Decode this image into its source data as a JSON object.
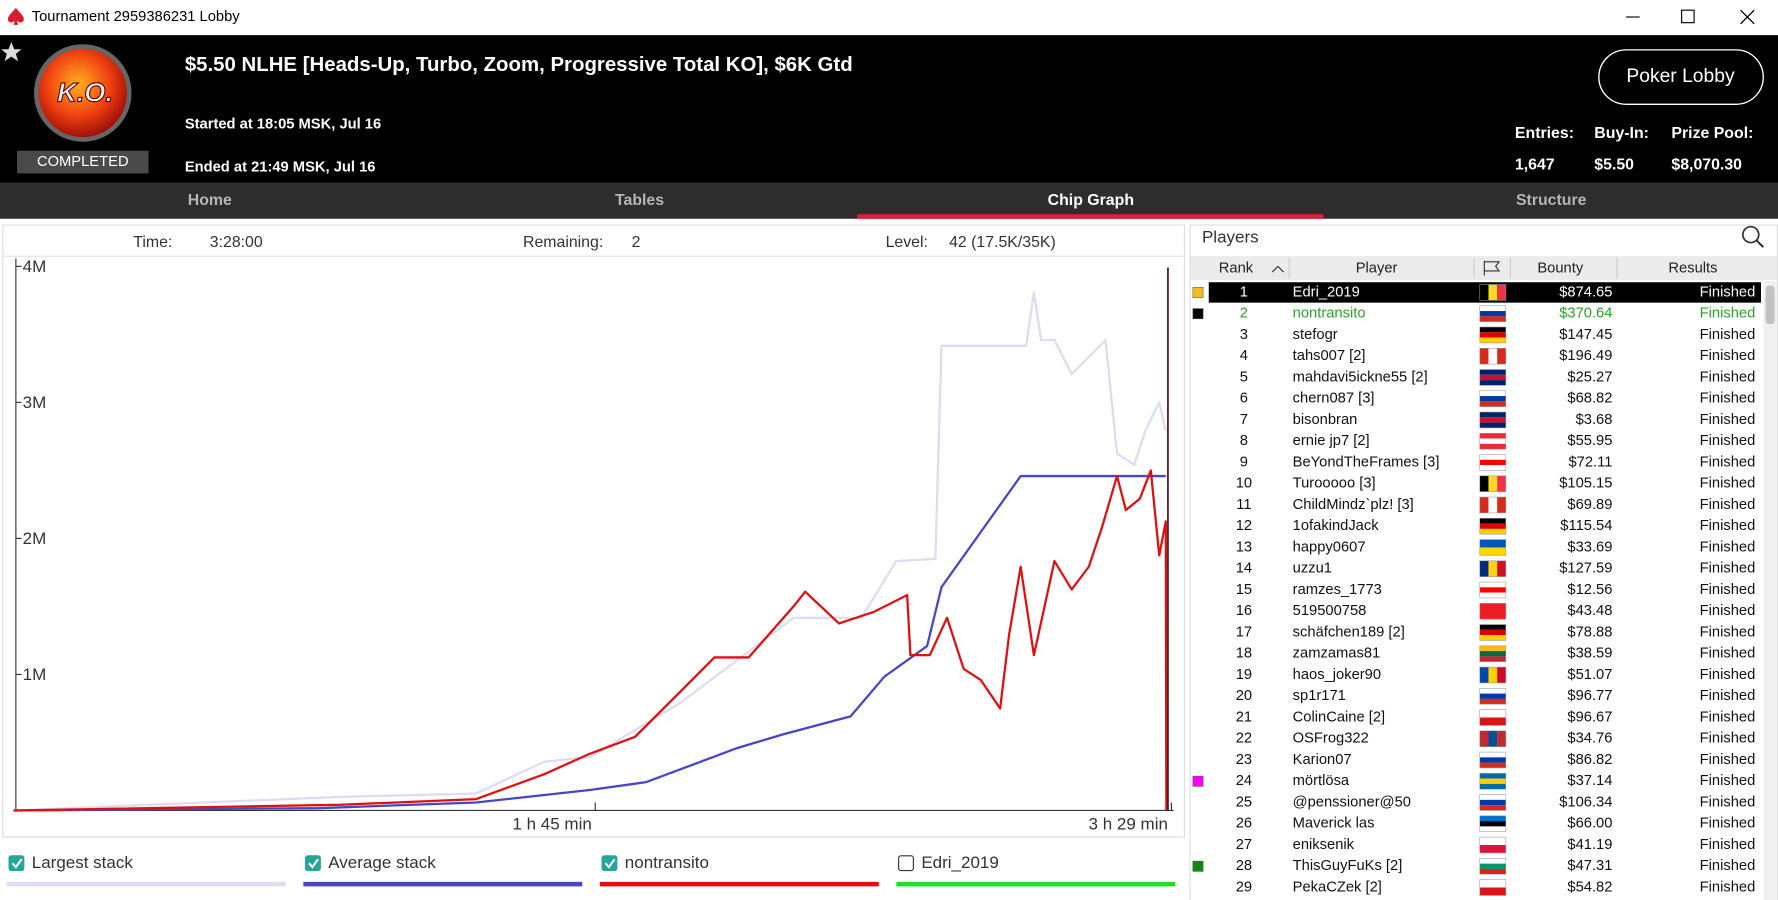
{
  "window": {
    "title": "Tournament 2959386231 Lobby"
  },
  "header": {
    "badge": "K.O.",
    "status": "COMPLETED",
    "title": "$5.50 NLHE [Heads-Up, Turbo, Zoom, Progressive Total KO], $6K Gtd",
    "started": "Started at 18:05 MSK, Jul 16",
    "ended": "Ended at 21:49 MSK, Jul 16",
    "button": "Poker Lobby",
    "stats": [
      {
        "label": "Entries:",
        "value": "1,647"
      },
      {
        "label": "Buy-In:",
        "value": "$5.50"
      },
      {
        "label": "Prize Pool:",
        "value": "$8,070.30"
      }
    ]
  },
  "tabs": [
    {
      "label": "Home"
    },
    {
      "label": "Tables"
    },
    {
      "label": "Chip Graph",
      "active": true
    },
    {
      "label": "Structure"
    }
  ],
  "graph_info": [
    {
      "label": "Time:",
      "value": "3:28:00"
    },
    {
      "label": "Remaining:",
      "value": "2"
    },
    {
      "label": "Level:",
      "value": "42 (17.5K/35K)"
    }
  ],
  "chart_data": {
    "type": "line",
    "xlim": [
      0,
      209
    ],
    "ylim": [
      0,
      4000000
    ],
    "yticks": [
      {
        "value": 1000000,
        "label": "1M"
      },
      {
        "value": 2000000,
        "label": "2M"
      },
      {
        "value": 3000000,
        "label": "3M"
      },
      {
        "value": 4000000,
        "label": "4M"
      }
    ],
    "xticks": [
      {
        "value": 105,
        "label": "1 h 45 min"
      },
      {
        "value": 209,
        "label": "3 h 29 min"
      }
    ],
    "series": [
      {
        "name": "Largest stack",
        "color": "#dcdcf2",
        "checked": true,
        "x": [
          0,
          59,
          83.5,
          95.8,
          104,
          120.4,
          140.8,
          153.1,
          159.3,
          166.4,
          167.5,
          182.8,
          184.2,
          185.5,
          187.9,
          191,
          197.1,
          199.2,
          202.3,
          204.3,
          206.8,
          208
        ],
        "values": [
          0,
          100000,
          125000,
          358000,
          392000,
          792000,
          1417000,
          1417000,
          1833000,
          1850000,
          3417000,
          3417000,
          3808000,
          3458000,
          3458000,
          3208000,
          3458000,
          2625000,
          2542000,
          2792000,
          3000000,
          2792000
        ]
      },
      {
        "name": "Average stack",
        "color": "#4646c6",
        "checked": true,
        "x": [
          0,
          54.9,
          83.5,
          104,
          114.2,
          130.6,
          138.8,
          151.1,
          157.2,
          164.9,
          167.5,
          181.8,
          208
        ],
        "values": [
          0,
          17000,
          58000,
          150000,
          208000,
          458000,
          558000,
          692000,
          983000,
          1208000,
          1642000,
          2458000,
          2458000
        ]
      },
      {
        "name": "nontransito",
        "color": "#e01010",
        "checked": true,
        "x": [
          0,
          59,
          83.5,
          95.8,
          104,
          112.2,
          120.4,
          126.5,
          132.7,
          140.8,
          142.9,
          149,
          155.2,
          161.3,
          161.9,
          165.4,
          168.5,
          171.5,
          174.6,
          178.1,
          179.7,
          181.8,
          184.2,
          187.9,
          191,
          194.1,
          196.5,
          199.2,
          200.8,
          203.3,
          205.3,
          206.8,
          208,
          208.1
        ],
        "values": [
          0,
          42000,
          83000,
          267000,
          417000,
          542000,
          875000,
          1125000,
          1125000,
          1500000,
          1608000,
          1375000,
          1458000,
          1583000,
          1142000,
          1142000,
          1417000,
          1042000,
          958000,
          750000,
          1292000,
          1792000,
          1142000,
          1833000,
          1625000,
          1792000,
          2083000,
          2458000,
          2208000,
          2292000,
          2500000,
          1875000,
          2125000,
          0
        ]
      },
      {
        "name": "Edri_2019",
        "color": "#22dd22",
        "checked": false
      }
    ]
  },
  "players": {
    "title": "Players",
    "columns": [
      "Rank",
      "Player",
      "Bounty",
      "Results"
    ],
    "rows": [
      {
        "rank": 1,
        "player": "Edri_2019",
        "bounty": "$874.65",
        "result": "Finished",
        "flag": [
          "#000000",
          "#fdda24",
          "#ef3340"
        ],
        "flag_dir": "v",
        "marker": "#f0c020",
        "selected": true
      },
      {
        "rank": 2,
        "player": "nontransito",
        "bounty": "$370.64",
        "result": "Finished",
        "flag": [
          "#ffffff",
          "#0039a6",
          "#d52b1e"
        ],
        "flag_dir": "h",
        "marker": "#000000",
        "highlight": "#2aa52a"
      },
      {
        "rank": 3,
        "player": "stefogr",
        "bounty": "$147.45",
        "result": "Finished",
        "flag": [
          "#000000",
          "#dd0000",
          "#ffce00"
        ],
        "flag_dir": "h"
      },
      {
        "rank": 4,
        "player": "tahs007 [2]",
        "bounty": "$196.49",
        "result": "Finished",
        "flag": [
          "#d52b1e",
          "#ffffff",
          "#d52b1e"
        ],
        "flag_dir": "v"
      },
      {
        "rank": 5,
        "player": "mahdavi5ickne55 [2]",
        "bounty": "$25.27",
        "result": "Finished",
        "flag": [
          "#012169",
          "#c8102e",
          "#012169"
        ],
        "flag_dir": "h"
      },
      {
        "rank": 6,
        "player": "chern087 [3]",
        "bounty": "$68.82",
        "result": "Finished",
        "flag": [
          "#ffffff",
          "#0039a6",
          "#d52b1e"
        ],
        "flag_dir": "h"
      },
      {
        "rank": 7,
        "player": "bisonbran",
        "bounty": "$3.68",
        "result": "Finished",
        "flag": [
          "#012169",
          "#c8102e",
          "#012169"
        ],
        "flag_dir": "h"
      },
      {
        "rank": 8,
        "player": "ernie jp7 [2]",
        "bounty": "$55.95",
        "result": "Finished",
        "flag": [
          "#ed2939",
          "#ffffff",
          "#ed2939"
        ],
        "flag_dir": "h"
      },
      {
        "rank": 9,
        "player": "BeYondTheFrames [3]",
        "bounty": "$72.11",
        "result": "Finished",
        "flag": [
          "#ffffff",
          "#ff0000",
          "#ffffff"
        ],
        "flag_dir": "h"
      },
      {
        "rank": 10,
        "player": "Turooooo [3]",
        "bounty": "$105.15",
        "result": "Finished",
        "flag": [
          "#000000",
          "#fdda24",
          "#ef3340"
        ],
        "flag_dir": "v"
      },
      {
        "rank": 11,
        "player": "ChildMindz`plz! [3]",
        "bounty": "$69.89",
        "result": "Finished",
        "flag": [
          "#d52b1e",
          "#ffffff",
          "#d52b1e"
        ],
        "flag_dir": "v"
      },
      {
        "rank": 12,
        "player": "1ofakindJack",
        "bounty": "$115.54",
        "result": "Finished",
        "flag": [
          "#000000",
          "#dd0000",
          "#ffce00"
        ],
        "flag_dir": "h"
      },
      {
        "rank": 13,
        "player": "happy0607",
        "bounty": "$33.69",
        "result": "Finished",
        "flag": [
          "#0057b7",
          "#ffd700"
        ],
        "flag_dir": "h"
      },
      {
        "rank": 14,
        "player": "uzzu1",
        "bounty": "$127.59",
        "result": "Finished",
        "flag": [
          "#002b7f",
          "#fcd116",
          "#ce1126"
        ],
        "flag_dir": "v"
      },
      {
        "rank": 15,
        "player": "ramzes_1773",
        "bounty": "$12.56",
        "result": "Finished",
        "flag": [
          "#ffffff",
          "#ff0000",
          "#ffffff"
        ],
        "flag_dir": "h"
      },
      {
        "rank": 16,
        "player": "519500758",
        "bounty": "$43.48",
        "result": "Finished",
        "flag": [
          "#ee1c25"
        ],
        "flag_dir": "h"
      },
      {
        "rank": 17,
        "player": "schäfchen189 [2]",
        "bounty": "$78.88",
        "result": "Finished",
        "flag": [
          "#000000",
          "#dd0000",
          "#ffce00"
        ],
        "flag_dir": "h"
      },
      {
        "rank": 18,
        "player": "zamzamas81",
        "bounty": "$38.59",
        "result": "Finished",
        "flag": [
          "#fdb913",
          "#006a44",
          "#c1272d"
        ],
        "flag_dir": "h"
      },
      {
        "rank": 19,
        "player": "haos_joker90",
        "bounty": "$51.07",
        "result": "Finished",
        "flag": [
          "#0046ae",
          "#ffd200",
          "#cc092f"
        ],
        "flag_dir": "v"
      },
      {
        "rank": 20,
        "player": "sp1r171",
        "bounty": "$96.77",
        "result": "Finished",
        "flag": [
          "#ffffff",
          "#0039a6",
          "#d52b1e"
        ],
        "flag_dir": "h"
      },
      {
        "rank": 21,
        "player": "ColinCaine [2]",
        "bounty": "$96.67",
        "result": "Finished",
        "flag": [
          "#ffffff",
          "#d7141a"
        ],
        "flag_dir": "h"
      },
      {
        "rank": 22,
        "player": "OSFrog322",
        "bounty": "$34.76",
        "result": "Finished",
        "flag": [
          "#c4272f",
          "#015197",
          "#c4272f"
        ],
        "flag_dir": "v"
      },
      {
        "rank": 23,
        "player": "Karion07",
        "bounty": "$86.82",
        "result": "Finished",
        "flag": [
          "#ffffff",
          "#0039a6",
          "#d52b1e"
        ],
        "flag_dir": "h"
      },
      {
        "rank": 24,
        "player": "mörtlösa",
        "bounty": "$37.14",
        "result": "Finished",
        "flag": [
          "#006aa7",
          "#fecc00",
          "#006aa7"
        ],
        "flag_dir": "h",
        "marker": "#ff00ff"
      },
      {
        "rank": 25,
        "player": "@penssioner@50",
        "bounty": "$106.34",
        "result": "Finished",
        "flag": [
          "#ffffff",
          "#0039a6",
          "#d52b1e"
        ],
        "flag_dir": "h"
      },
      {
        "rank": 26,
        "player": "Maverick las",
        "bounty": "$66.00",
        "result": "Finished",
        "flag": [
          "#0072ce",
          "#000000",
          "#ffffff"
        ],
        "flag_dir": "h"
      },
      {
        "rank": 27,
        "player": "eniksenik",
        "bounty": "$41.19",
        "result": "Finished",
        "flag": [
          "#ffffff",
          "#dc143c"
        ],
        "flag_dir": "h"
      },
      {
        "rank": 28,
        "player": "ThisGuyFuKs [2]",
        "bounty": "$47.31",
        "result": "Finished",
        "flag": [
          "#ffffff",
          "#00966e",
          "#d62612"
        ],
        "flag_dir": "h",
        "marker": "#118811"
      },
      {
        "rank": 29,
        "player": "PekaCZek [2]",
        "bounty": "$54.82",
        "result": "Finished",
        "flag": [
          "#ffffff",
          "#d7141a"
        ],
        "flag_dir": "h"
      }
    ]
  }
}
